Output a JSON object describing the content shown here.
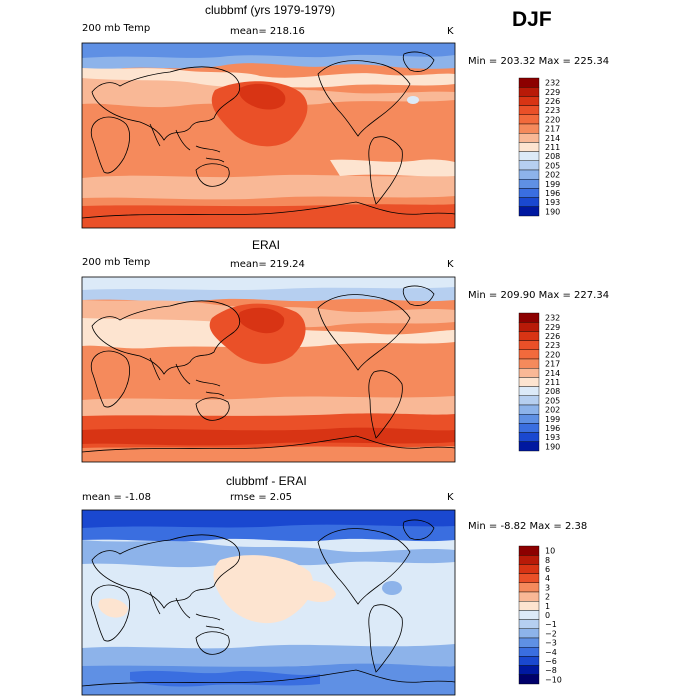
{
  "season": "DJF",
  "chart_data": [
    {
      "type": "heatmap",
      "title": "clubbmf (yrs 1979-1979)",
      "left_label": "200 mb Temp",
      "stat_label": "mean= 218.16",
      "units": "K",
      "min_max": "Min = 203.32 Max = 225.34",
      "mean": 218.16,
      "min": 203.32,
      "max": 225.34,
      "colorbar_levels": [
        "232",
        "229",
        "226",
        "223",
        "220",
        "217",
        "214",
        "211",
        "208",
        "205",
        "202",
        "199",
        "196",
        "193",
        "190"
      ]
    },
    {
      "type": "heatmap",
      "title": "ERAI",
      "left_label": "200 mb Temp",
      "stat_label": "mean= 219.24",
      "units": "K",
      "min_max": "Min = 209.90 Max = 227.34",
      "mean": 219.24,
      "min": 209.9,
      "max": 227.34,
      "colorbar_levels": [
        "232",
        "229",
        "226",
        "223",
        "220",
        "217",
        "214",
        "211",
        "208",
        "205",
        "202",
        "199",
        "196",
        "193",
        "190"
      ]
    },
    {
      "type": "heatmap",
      "title": "clubbmf - ERAI",
      "left_label": "mean =  -1.08",
      "stat_label": "rmse =   2.05",
      "units": "K",
      "min_max": "Min =  -8.82 Max =   2.38",
      "mean": -1.08,
      "rmse": 2.05,
      "min": -8.82,
      "max": 2.38,
      "colorbar_levels": [
        "10",
        "8",
        "6",
        "4",
        "3",
        "2",
        "1",
        "0",
        "−1",
        "−2",
        "−3",
        "−4",
        "−6",
        "−8",
        "−10"
      ]
    }
  ],
  "colors": {
    "temp": [
      "#8c0000",
      "#b81a08",
      "#d83414",
      "#ea5028",
      "#f26a3c",
      "#f58a5c",
      "#f9b896",
      "#fde4d0",
      "#dceaf8",
      "#b6cff0",
      "#8db3ea",
      "#5f90e4",
      "#3a6ee0",
      "#1a48d0",
      "#0018a0"
    ],
    "diff": [
      "#8c0000",
      "#b81a08",
      "#d83414",
      "#ea5028",
      "#f58a5c",
      "#f9b896",
      "#fde4d0",
      "#dceaf8",
      "#b6cff0",
      "#8db3ea",
      "#5f90e4",
      "#3a6ee0",
      "#1a48d0",
      "#0018a0",
      "#00006a"
    ]
  }
}
